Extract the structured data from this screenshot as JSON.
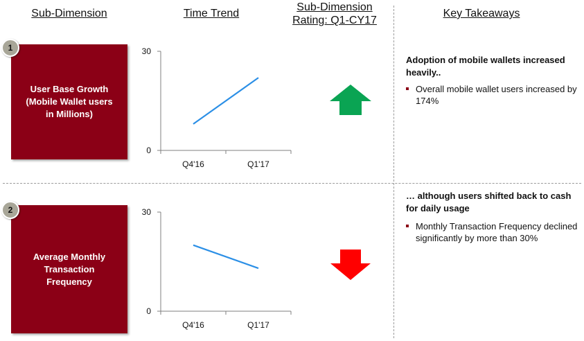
{
  "headers": {
    "sub_dimension": "Sub-Dimension",
    "time_trend": "Time Trend",
    "rating_line1": "Sub-Dimension",
    "rating_line2": "Rating: Q1-CY17",
    "key_takeaways": "Key Takeaways"
  },
  "rows": [
    {
      "badge": "1",
      "label": "User Base Growth\n(Mobile Wallet users\nin Millions)",
      "box_color": "#8b0016",
      "rating": "up",
      "rating_color": "#0aa453",
      "takeaway_title": "Adoption of mobile wallets increased heavily..",
      "bullets": [
        "Overall mobile wallet users increased by 174%"
      ]
    },
    {
      "badge": "2",
      "label": "Average Monthly\nTransaction\nFrequency",
      "box_color": "#8b0016",
      "rating": "down",
      "rating_color": "#ff0000",
      "takeaway_title": "… although users shifted back to cash for daily usage",
      "bullets": [
        "Monthly Transaction Frequency declined significantly by more than 30%"
      ]
    }
  ],
  "chart_data": [
    {
      "type": "line",
      "categories": [
        "Q4'16",
        "Q1'17"
      ],
      "series": [
        {
          "values": [
            8,
            22
          ]
        }
      ],
      "ylim": [
        0,
        30
      ],
      "yticks": [
        "0",
        "30"
      ],
      "line_color": "#2b8fe6"
    },
    {
      "type": "line",
      "categories": [
        "Q4'16",
        "Q1'17"
      ],
      "series": [
        {
          "values": [
            20,
            13
          ]
        }
      ],
      "ylim": [
        0,
        30
      ],
      "yticks": [
        "0",
        "30"
      ],
      "line_color": "#2b8fe6"
    }
  ]
}
